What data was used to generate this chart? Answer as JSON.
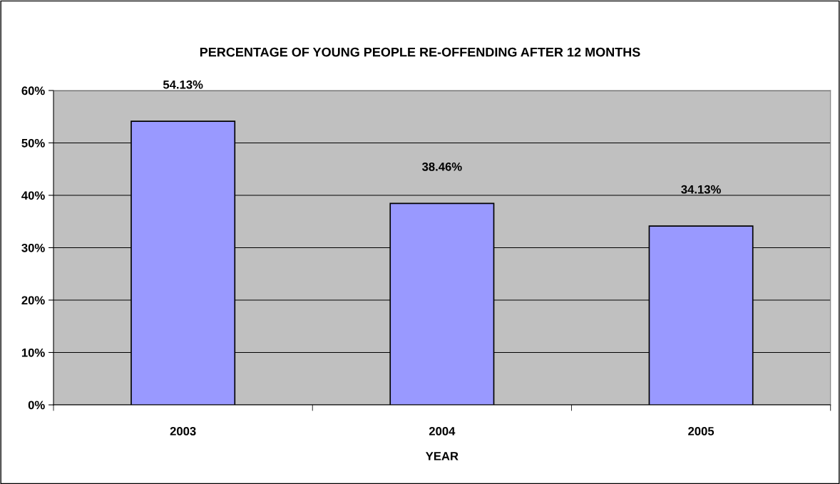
{
  "chart_data": {
    "type": "bar",
    "title": "PERCENTAGE OF YOUNG PEOPLE RE-OFFENDING AFTER 12 MONTHS",
    "xlabel": "YEAR",
    "categories": [
      "2003",
      "2004",
      "2005"
    ],
    "values": [
      54.13,
      38.46,
      34.13
    ],
    "value_labels": [
      "54.13%",
      "38.46%",
      "34.13%"
    ],
    "color": "#9999ff",
    "ylim": [
      0,
      60
    ],
    "yticks": [
      {
        "value": 0,
        "label": "0%"
      },
      {
        "value": 10,
        "label": "10%"
      },
      {
        "value": 20,
        "label": "20%"
      },
      {
        "value": 30,
        "label": "30%"
      },
      {
        "value": 40,
        "label": "40%"
      },
      {
        "value": 50,
        "label": "50%"
      },
      {
        "value": 60,
        "label": "60%"
      }
    ],
    "grid": "y",
    "legend": false
  }
}
